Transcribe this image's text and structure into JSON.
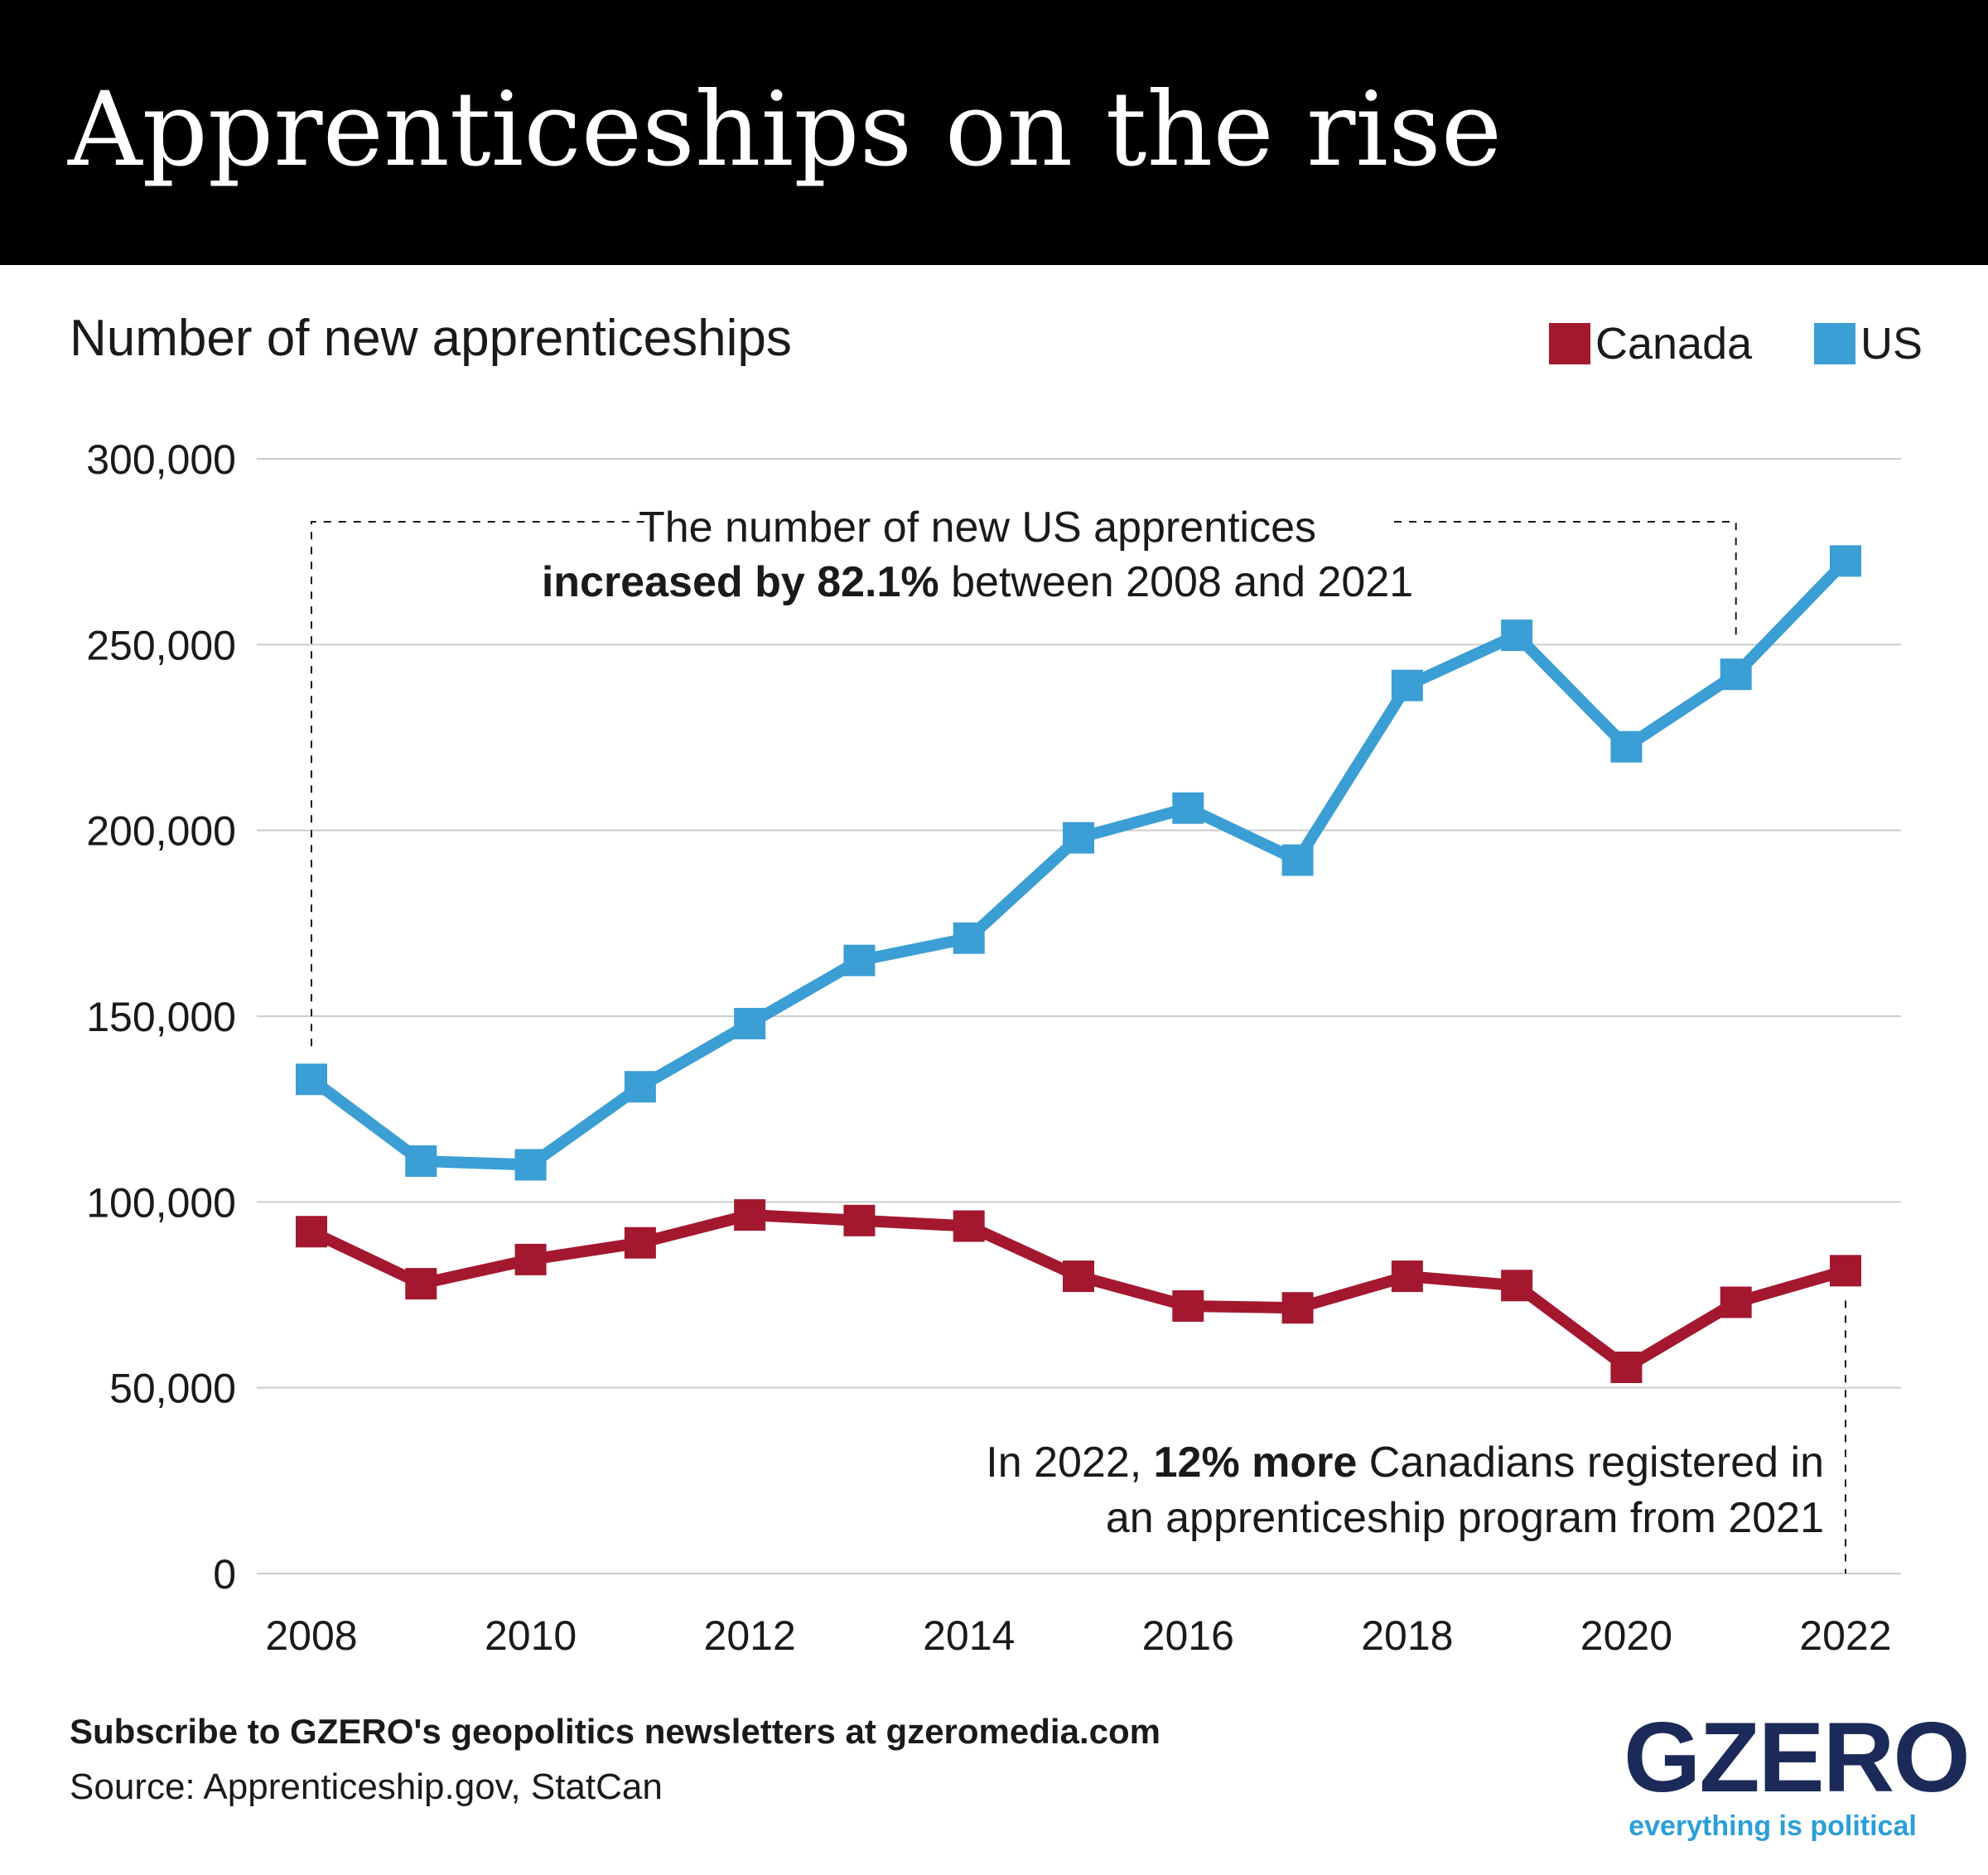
{
  "title": "Apprenticeships on the rise",
  "subtitle": "Number of new apprenticeships",
  "colors": {
    "canada": "#a3182f",
    "us": "#3b9ed4",
    "grid": "#cccccc",
    "header_bg": "#000000"
  },
  "legend": [
    {
      "name": "Canada",
      "color": "#a3182f"
    },
    {
      "name": "US",
      "color": "#3b9ed4"
    }
  ],
  "annotations": {
    "us": {
      "line1": "The number of new US apprentices",
      "bold": "increased by 82.1%",
      "rest": " between 2008 and 2021"
    },
    "canada": {
      "pre": "In 2022, ",
      "bold": "12% more",
      "rest": " Canadians registered in",
      "line2": "an apprenticeship program from 2021"
    }
  },
  "footer": {
    "subscribe": "Subscribe to GZERO's geopolitics newsletters at gzeromedia.com",
    "source": "Source: Apprenticeship.gov, StatCan"
  },
  "logo": {
    "word": "GZERO",
    "tagline": "everything is political"
  },
  "chart_data": {
    "type": "line",
    "title": "Apprenticeships on the rise",
    "ylabel": "Number of new apprenticeships",
    "xlabel": "",
    "x": [
      2008,
      2009,
      2010,
      2011,
      2012,
      2013,
      2014,
      2015,
      2016,
      2017,
      2018,
      2019,
      2020,
      2021,
      2022
    ],
    "xticks": [
      2008,
      2010,
      2012,
      2014,
      2016,
      2018,
      2020,
      2022
    ],
    "xtick_labels": [
      "2008",
      "2010",
      "2012",
      "2014",
      "2016",
      "2018",
      "2020",
      "2022"
    ],
    "ylim": [
      0,
      300000
    ],
    "yticks": [
      0,
      50000,
      100000,
      150000,
      200000,
      250000,
      300000
    ],
    "ytick_labels": [
      "0",
      "50,000",
      "100,000",
      "150,000",
      "200,000",
      "250,000",
      "300,000"
    ],
    "grid": true,
    "legend_position": "top-right",
    "series": [
      {
        "name": "Canada",
        "key": "canada",
        "values": [
          92000,
          78000,
          84500,
          89000,
          96500,
          95000,
          93500,
          80000,
          72000,
          71500,
          80000,
          77500,
          55500,
          73000,
          81500
        ]
      },
      {
        "name": "US",
        "key": "us",
        "values": [
          133000,
          111000,
          110000,
          131000,
          148000,
          165000,
          171000,
          198000,
          206000,
          192000,
          239000,
          252500,
          222500,
          242000,
          272500
        ]
      }
    ]
  }
}
